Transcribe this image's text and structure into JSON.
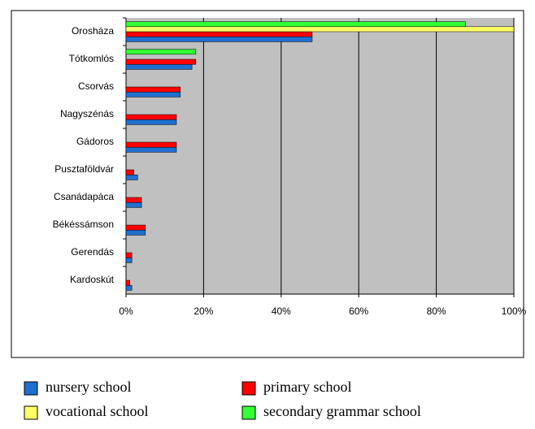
{
  "chart_data": {
    "type": "hbar",
    "categories": [
      "Orosháza",
      "Tótkomlós",
      "Csorvás",
      "Nagyszénás",
      "Gádoros",
      "Pusztaföldvár",
      "Csanádapáca",
      "Békéssámson",
      "Gerendás",
      "Kardoskút"
    ],
    "series": [
      {
        "name": "nursery school",
        "color": "#1f6fd0",
        "values": [
          48,
          17,
          14,
          13,
          13,
          3,
          4,
          5,
          1.5,
          1.5
        ]
      },
      {
        "name": "primary school",
        "color": "#ff0000",
        "values": [
          48,
          18,
          14,
          13,
          13,
          2,
          4,
          5,
          1.5,
          1
        ]
      },
      {
        "name": "vocational school",
        "color": "#ffff66",
        "values": [
          100,
          null,
          null,
          null,
          null,
          null,
          null,
          null,
          null,
          null
        ]
      },
      {
        "name": "secondary grammar school",
        "color": "#33ff33",
        "values": [
          87.5,
          18,
          null,
          null,
          null,
          null,
          null,
          null,
          null,
          null
        ]
      }
    ],
    "xlim": [
      0,
      100
    ],
    "xticks": [
      {
        "value": 0,
        "label": "0%"
      },
      {
        "value": 20,
        "label": "20%"
      },
      {
        "value": 40,
        "label": "40%"
      },
      {
        "value": 60,
        "label": "60%"
      },
      {
        "value": 80,
        "label": "80%"
      },
      {
        "value": 100,
        "label": "100%"
      }
    ],
    "grid": true
  }
}
